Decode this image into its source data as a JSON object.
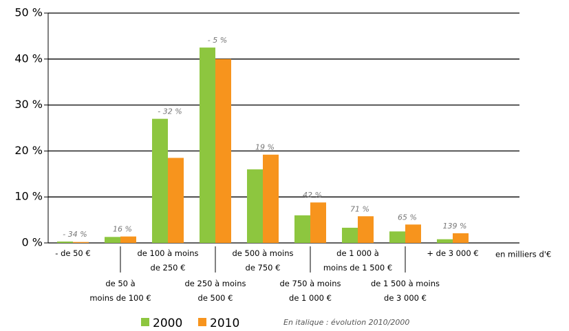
{
  "chart_data": {
    "type": "bar",
    "categories": [
      [
        "- de 50 €"
      ],
      [
        "de 50 à",
        "moins de 100 €"
      ],
      [
        "de 100 à moins",
        "de 250 €"
      ],
      [
        "de  250 à moins",
        "de 500 €"
      ],
      [
        "de 500 à moins",
        "de 750 €"
      ],
      [
        "de 750 à moins",
        "de 1 000 €"
      ],
      [
        "de 1 000 à",
        "moins de 1 500 €"
      ],
      [
        "de 1 500 à moins",
        "de 3 000 €"
      ],
      [
        "+ de 3 000 €"
      ]
    ],
    "series": [
      {
        "name": "2000",
        "color": "#8dc63f",
        "values": [
          0.3,
          1.3,
          27,
          42.5,
          16,
          6,
          3.3,
          2.5,
          0.8
        ]
      },
      {
        "name": "2010",
        "color": "#f7941d",
        "values": [
          0.2,
          1.4,
          18.5,
          40,
          19.2,
          8.8,
          5.8,
          4,
          2.1
        ]
      }
    ],
    "annotations": [
      "- 34 %",
      "16 %",
      "- 32 %",
      "- 5 %",
      "19 %",
      "42 %",
      "71 %",
      "65 %",
      "139 %"
    ],
    "x_label": "en milliers d'€",
    "note": "En italique : évolution 2010/2000",
    "ylim": [
      0,
      50
    ],
    "yticks": [
      {
        "value": 0,
        "label": "0 %"
      },
      {
        "value": 10,
        "label": "10 %"
      },
      {
        "value": 20,
        "label": "20 %"
      },
      {
        "value": 30,
        "label": "30 %"
      },
      {
        "value": 40,
        "label": "40 %"
      },
      {
        "value": 50,
        "label": "50 %"
      }
    ],
    "grid": true
  }
}
